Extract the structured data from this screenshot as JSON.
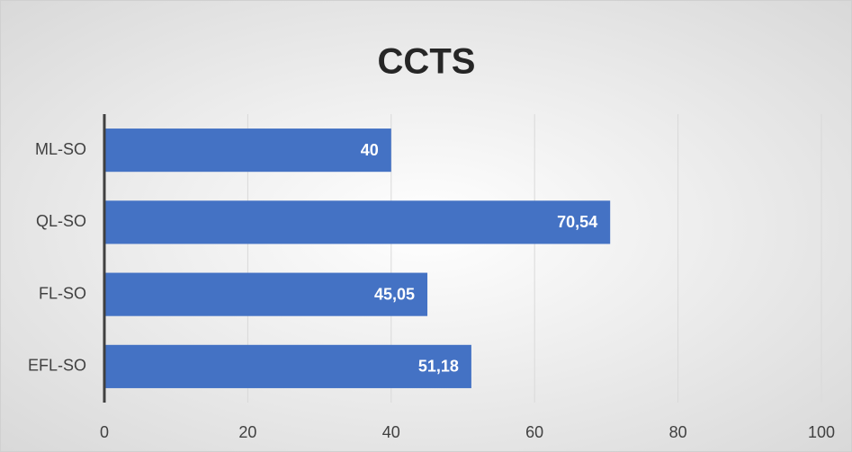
{
  "chart_data": {
    "type": "bar",
    "orientation": "horizontal",
    "title": "CCTS",
    "categories": [
      "ML-SO",
      "QL-SO",
      "FL-SO",
      "EFL-SO"
    ],
    "values": [
      40,
      70.54,
      45.05,
      51.18
    ],
    "value_labels": [
      "40",
      "70,54",
      "45,05",
      "51,18"
    ],
    "color": "#4472c4",
    "xlim": [
      0,
      100
    ],
    "xticks": [
      0,
      20,
      40,
      60,
      80,
      100
    ],
    "grid": true
  }
}
